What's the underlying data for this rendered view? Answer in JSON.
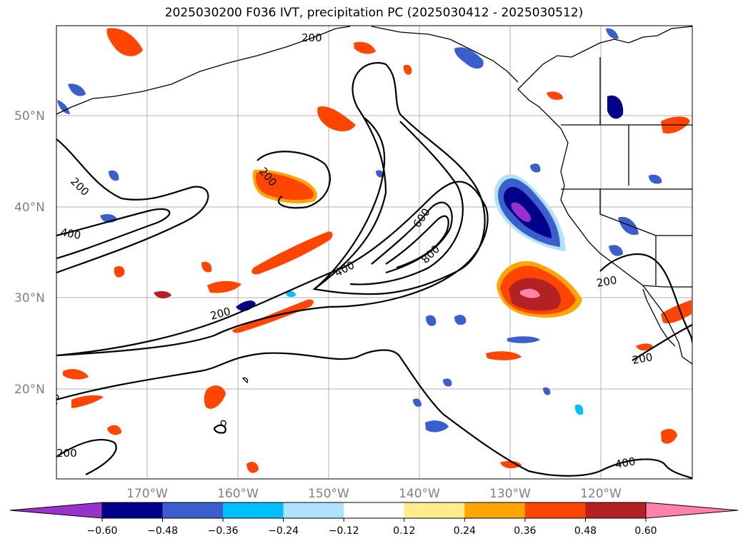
{
  "title": "2025030200 F036 IVT, precipitation PC (2025030412 - 2025030512)",
  "map": {
    "lat_labels": [
      "50°N",
      "40°N",
      "30°N",
      "20°N"
    ],
    "lon_labels": [
      "170°W",
      "160°W",
      "150°W",
      "140°W",
      "130°W",
      "120°W"
    ],
    "contour_labels": [
      "200",
      "200",
      "200",
      "400",
      "200",
      "200",
      "400",
      "600",
      "800",
      "200",
      "200",
      "400",
      "200",
      "200",
      "400"
    ]
  },
  "colorbar": {
    "ticks": [
      "−0.60",
      "−0.48",
      "−0.36",
      "−0.24",
      "−0.12",
      "0.12",
      "0.24",
      "0.36",
      "0.48",
      "0.60"
    ],
    "colors": [
      "#9932CC",
      "#00008B",
      "#3A5FCD",
      "#00BFFF",
      "#B0E2FF",
      "#FFFFFF",
      "#FFEC8B",
      "#FFA500",
      "#FF4500",
      "#B22222",
      "#FF82AB"
    ]
  },
  "colors": {
    "positive_precip": "#FF4500",
    "negative_precip": "#3A5FCD",
    "grid": "#B0B0B0"
  }
}
